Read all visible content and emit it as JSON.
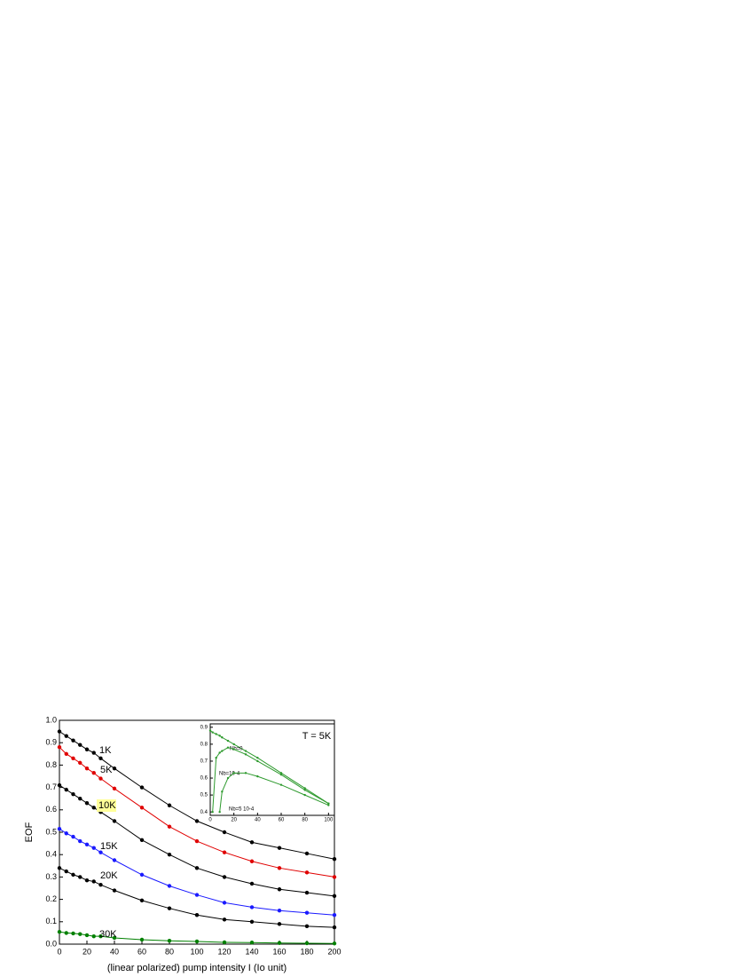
{
  "chart_data": [
    {
      "type": "line",
      "y_label": "EOF",
      "x_label": "(linear polarized) pump intensity I  (Io unit)",
      "x": [
        0,
        5,
        10,
        15,
        20,
        25,
        30,
        40,
        60,
        80,
        100,
        120,
        140,
        160,
        180,
        200
      ],
      "xlim": [
        0,
        200
      ],
      "xticks": [
        0,
        20,
        40,
        60,
        80,
        100,
        120,
        140,
        160,
        180,
        200
      ],
      "ylim": [
        0,
        1.0
      ],
      "yticks": [
        {
          "value": 0,
          "label": "0.0"
        },
        0.1,
        0.2,
        0.3,
        0.4,
        0.5,
        0.6,
        0.7,
        0.8,
        0.9,
        {
          "value": 1.0,
          "label": "1.0"
        }
      ],
      "series": [
        {
          "name": "1K",
          "color": "#000000",
          "values": [
            0.95,
            0.93,
            0.91,
            0.89,
            0.87,
            0.855,
            0.83,
            0.785,
            0.7,
            0.62,
            0.55,
            0.5,
            0.455,
            0.43,
            0.405,
            0.38
          ]
        },
        {
          "name": "5K",
          "color": "#e00000",
          "values": [
            0.88,
            0.85,
            0.83,
            0.81,
            0.785,
            0.765,
            0.74,
            0.695,
            0.61,
            0.525,
            0.46,
            0.41,
            0.37,
            0.34,
            0.32,
            0.3
          ]
        },
        {
          "name": "10K",
          "color": "#000000",
          "values": [
            0.71,
            0.69,
            0.67,
            0.65,
            0.63,
            0.61,
            0.59,
            0.55,
            0.465,
            0.4,
            0.34,
            0.3,
            0.27,
            0.245,
            0.23,
            0.215
          ]
        },
        {
          "name": "15K",
          "color": "#1a1aff",
          "values": [
            0.515,
            0.495,
            0.48,
            0.46,
            0.445,
            0.43,
            0.41,
            0.375,
            0.31,
            0.26,
            0.22,
            0.185,
            0.165,
            0.15,
            0.14,
            0.13
          ]
        },
        {
          "name": "20K",
          "color": "#000000",
          "values": [
            0.34,
            0.325,
            0.31,
            0.3,
            0.285,
            0.28,
            0.265,
            0.24,
            0.195,
            0.16,
            0.13,
            0.11,
            0.1,
            0.09,
            0.08,
            0.075
          ]
        },
        {
          "name": "30K",
          "color": "#008000",
          "values": [
            0.055,
            0.05,
            0.048,
            0.045,
            0.04,
            0.035,
            0.035,
            0.028,
            0.02,
            0.015,
            0.012,
            0.008,
            0.007,
            0.005,
            0.004,
            0.003
          ]
        }
      ]
    },
    {
      "type": "line",
      "annotation": "T = 5K",
      "x": [
        0,
        2,
        5,
        8,
        10,
        15,
        20,
        30,
        40,
        60,
        80,
        100
      ],
      "xlim": [
        0,
        105
      ],
      "xticks": [
        0,
        20,
        40,
        60,
        80,
        100
      ],
      "ylim": [
        0.38,
        0.92
      ],
      "yticks": [
        0.4,
        0.5,
        0.6,
        0.7,
        0.8,
        0.9
      ],
      "series": [
        {
          "name": "Nb=0",
          "color": "#2e9a2e",
          "values": [
            0.88,
            0.87,
            0.86,
            0.85,
            0.84,
            0.82,
            0.8,
            0.76,
            0.72,
            0.63,
            0.54,
            0.45
          ]
        },
        {
          "name": "Nb=10-4",
          "color": "#2e9a2e",
          "values": [
            null,
            0.4,
            0.72,
            0.75,
            0.76,
            0.78,
            0.77,
            0.74,
            0.7,
            0.62,
            0.53,
            0.45
          ]
        },
        {
          "name": "Nb=5 10-4",
          "color": "#2e9a2e",
          "values": [
            null,
            null,
            null,
            0.4,
            0.52,
            0.6,
            0.63,
            0.63,
            0.61,
            0.56,
            0.5,
            0.44
          ]
        }
      ]
    }
  ]
}
